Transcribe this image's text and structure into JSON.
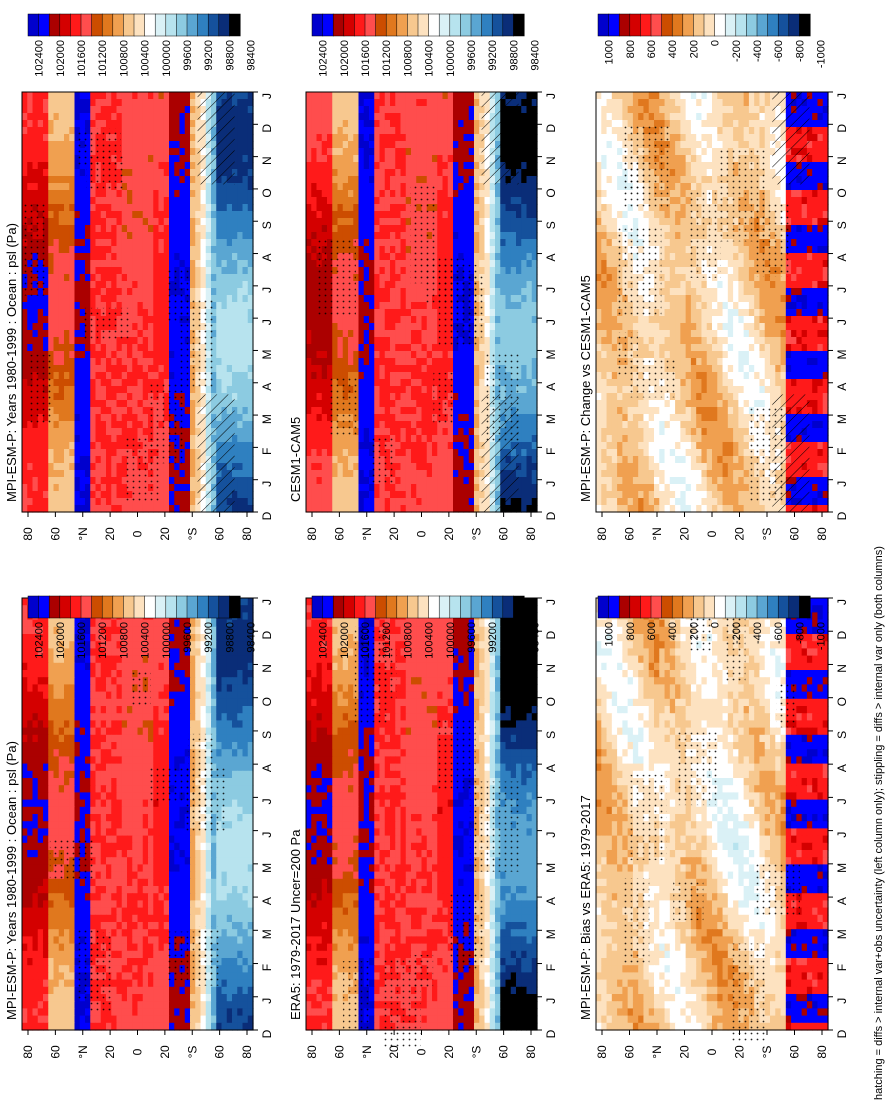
{
  "footer": "hatching = diffs > internal var+obs uncertainty (left column only); stippling = diffs > internal var only (both columns)",
  "month_ticks": [
    "D",
    "J",
    "F",
    "M",
    "A",
    "M",
    "J",
    "J",
    "A",
    "S",
    "O",
    "N",
    "D",
    "J"
  ],
  "lat_ticks": [
    "80",
    "60",
    "°N",
    "20",
    "0",
    "20",
    "°S",
    "60",
    "80"
  ],
  "levels_abs": [
    "102400",
    "102000",
    "101600",
    "101200",
    "100800",
    "100400",
    "100000",
    "99600",
    "99200",
    "98800",
    "98400"
  ],
  "levels_diff": [
    "1000",
    "800",
    "600",
    "400",
    "200",
    "0",
    "-200",
    "-400",
    "-600",
    "-800",
    "-1000"
  ],
  "colors_abs": [
    "#0000cd",
    "#0000ff",
    "#ab0000",
    "#d40000",
    "#ff1a1a",
    "#ff4d4d",
    "#cc4d00",
    "#e0781e",
    "#f0a050",
    "#f7c88f",
    "#fde2c0",
    "#ffffff",
    "#daf1f6",
    "#b7e3ee",
    "#8ccbe1",
    "#5aa6d2",
    "#2f80c0",
    "#15519c",
    "#0a2d78",
    "#000000"
  ],
  "colors_diff": [
    "#0000cd",
    "#0000ff",
    "#ab0000",
    "#d40000",
    "#ff1a1a",
    "#ff4d4d",
    "#cc4d00",
    "#e0781e",
    "#f0a050",
    "#f7c88f",
    "#fde2c0",
    "#ffffff",
    "#daf1f6",
    "#b7e3ee",
    "#8ccbe1",
    "#5aa6d2",
    "#2f80c0",
    "#15519c",
    "#0a2d78",
    "#000000"
  ],
  "chart_data": [
    {
      "type": "heatmap",
      "title": "MPI-ESM-P: Years 1980-1999 : Ocean : psl (Pa)",
      "xlabel": "",
      "ylabel": "",
      "colorbar": "abs",
      "x": [
        "D",
        "J",
        "F",
        "M",
        "A",
        "M",
        "J",
        "J",
        "A",
        "S",
        "O",
        "N",
        "D",
        "J"
      ],
      "y": [
        "80",
        "60",
        "°N",
        "20",
        "0",
        "20",
        "°S",
        "60",
        "80"
      ],
      "hatching": true
    },
    {
      "type": "heatmap",
      "title": "MPI-ESM-P: Years 1980-1999 : Ocean : psl (Pa)",
      "xlabel": "",
      "ylabel": "",
      "colorbar": "abs",
      "x": [
        "D",
        "J",
        "F",
        "M",
        "A",
        "M",
        "J",
        "J",
        "A",
        "S",
        "O",
        "N",
        "D",
        "J"
      ],
      "y": [
        "80",
        "60",
        "°N",
        "20",
        "0",
        "20",
        "°S",
        "60",
        "80"
      ],
      "hatching": false
    },
    {
      "type": "heatmap",
      "title": "ERA5: 1979-2017 Uncer=200 Pa",
      "xlabel": "",
      "ylabel": "",
      "colorbar": "abs",
      "x": [
        "D",
        "J",
        "F",
        "M",
        "A",
        "M",
        "J",
        "J",
        "A",
        "S",
        "O",
        "N",
        "D",
        "J"
      ],
      "y": [
        "80",
        "60",
        "°N",
        "20",
        "0",
        "20",
        "°S",
        "60",
        "80"
      ],
      "hatching": false
    },
    {
      "type": "heatmap",
      "title": "CESM1-CAM5",
      "xlabel": "",
      "ylabel": "",
      "colorbar": "abs",
      "x": [
        "D",
        "J",
        "F",
        "M",
        "A",
        "M",
        "J",
        "J",
        "A",
        "S",
        "O",
        "N",
        "D",
        "J"
      ],
      "y": [
        "80",
        "60",
        "°N",
        "20",
        "0",
        "20",
        "°S",
        "60",
        "80"
      ],
      "hatching": false
    },
    {
      "type": "heatmap",
      "title": "MPI-ESM-P: Bias vs ERA5: 1979-2017",
      "xlabel": "",
      "ylabel": "",
      "colorbar": "diff",
      "x": [
        "D",
        "J",
        "F",
        "M",
        "A",
        "M",
        "J",
        "J",
        "A",
        "S",
        "O",
        "N",
        "D",
        "J"
      ],
      "y": [
        "80",
        "60",
        "°N",
        "20",
        "0",
        "20",
        "°S",
        "60",
        "80"
      ],
      "hatching": true
    },
    {
      "type": "heatmap",
      "title": "MPI-ESM-P: Change vs CESM1-CAM5",
      "xlabel": "",
      "ylabel": "",
      "colorbar": "diff",
      "x": [
        "D",
        "J",
        "F",
        "M",
        "A",
        "M",
        "J",
        "J",
        "A",
        "S",
        "O",
        "N",
        "D",
        "J"
      ],
      "y": [
        "80",
        "60",
        "°N",
        "20",
        "0",
        "20",
        "°S",
        "60",
        "80"
      ],
      "hatching": false
    }
  ]
}
